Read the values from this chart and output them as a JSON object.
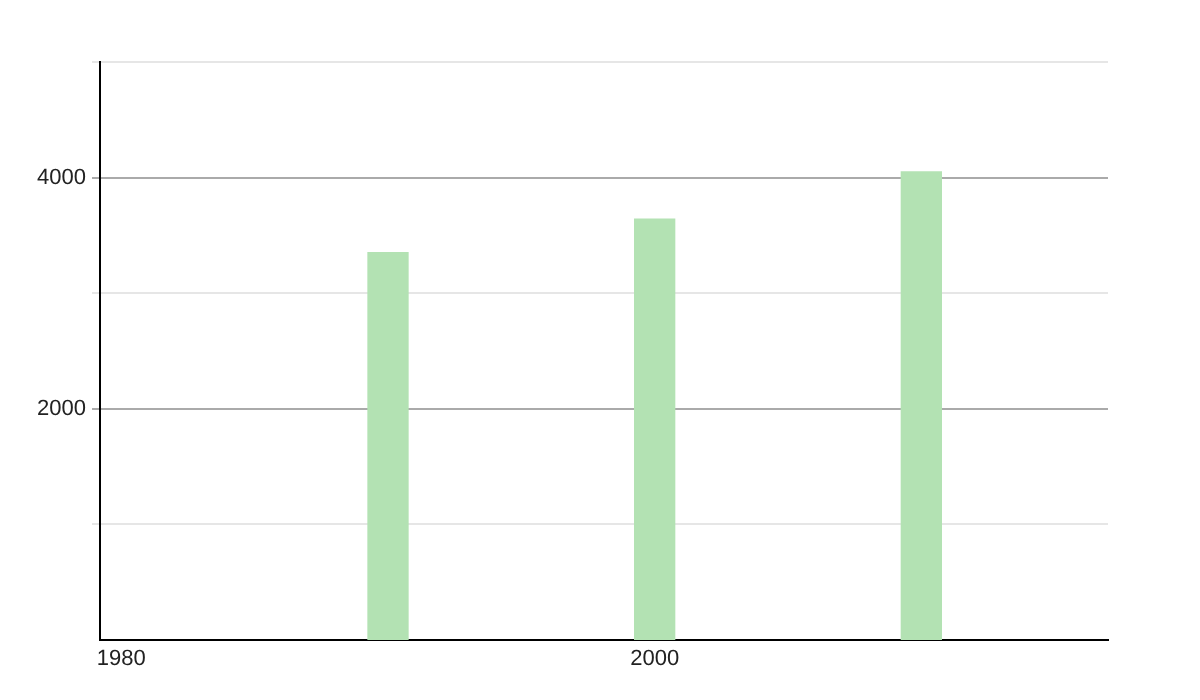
{
  "chart_data": {
    "type": "bar",
    "x": [
      1990,
      2000,
      2010
    ],
    "values": [
      3350,
      3640,
      4050
    ],
    "color": "#b3e2b3",
    "xlim": [
      1979.2,
      2017
    ],
    "xticks": [
      1980,
      2000
    ],
    "ylim": [
      0,
      5000
    ],
    "yticks": [
      {
        "value": 1000,
        "label": null
      },
      2000,
      {
        "value": 3000,
        "label": null
      },
      4000,
      {
        "value": 5000,
        "label": null
      }
    ],
    "grid": "y"
  }
}
